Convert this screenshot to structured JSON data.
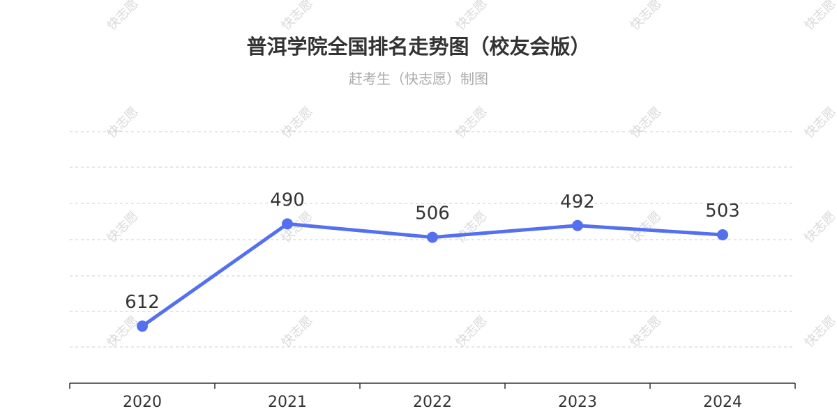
{
  "chart_data": {
    "type": "line",
    "title": "普洱学院全国排名走势图（校友会版）",
    "subtitle": "赶考生（快志愿）制图",
    "categories": [
      "2020",
      "2021",
      "2022",
      "2023",
      "2024"
    ],
    "series": [
      {
        "values": [
          612,
          490,
          506,
          492,
          503
        ]
      }
    ],
    "y_inverted": true,
    "ylim": [
      380,
      680
    ],
    "grid": true,
    "line_color": "#5470f0",
    "watermark": "快志愿"
  }
}
